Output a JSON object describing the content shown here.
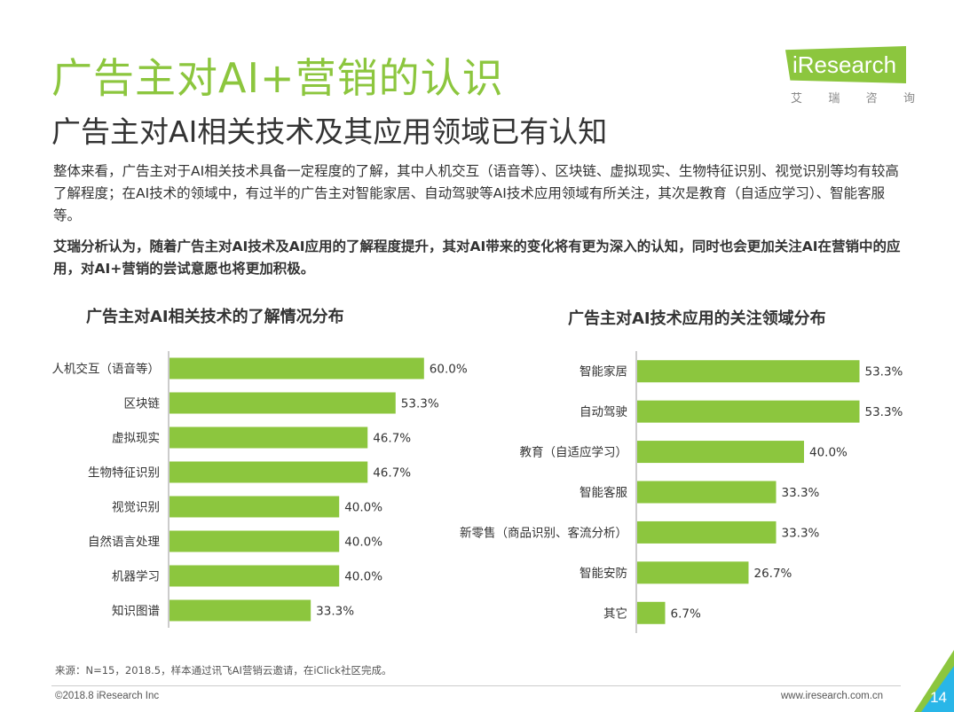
{
  "header": {
    "title": "广告主对AI+营销的认识",
    "subtitle": "广告主对AI相关技术及其应用领域已有认知"
  },
  "logo": {
    "word": "iResearch",
    "cn": [
      "艾",
      "瑞",
      "咨",
      "询"
    ]
  },
  "body": {
    "para1": "整体来看，广告主对于AI相关技术具备一定程度的了解，其中人机交互（语音等）、区块链、虚拟现实、生物特征识别、视觉识别等均有较高了解程度；在AI技术的领域中，有过半的广告主对智能家居、自动驾驶等AI技术应用领域有所关注，其次是教育（自适应学习）、智能客服等。",
    "para2": "艾瑞分析认为，随着广告主对AI技术及AI应用的了解程度提升，其对AI带来的变化将有更为深入的认知，同时也会更加关注AI在营销中的应用，对AI+营销的尝试意愿也将更加积极。"
  },
  "chart_data": [
    {
      "type": "bar",
      "orientation": "horizontal",
      "title": "广告主对AI相关技术的了解情况分布",
      "categories": [
        "人机交互（语音等）",
        "区块链",
        "虚拟现实",
        "生物特征识别",
        "视觉识别",
        "自然语言处理",
        "机器学习",
        "知识图谱"
      ],
      "values": [
        60.0,
        53.3,
        46.7,
        46.7,
        40.0,
        40.0,
        40.0,
        33.3
      ],
      "value_labels": [
        "60.0%",
        "53.3%",
        "46.7%",
        "46.7%",
        "40.0%",
        "40.0%",
        "40.0%",
        "33.3%"
      ],
      "unit": "%",
      "color": "#8cc63e"
    },
    {
      "type": "bar",
      "orientation": "horizontal",
      "title": "广告主对AI技术应用的关注领域分布",
      "categories": [
        "智能家居",
        "自动驾驶",
        "教育（自适应学习）",
        "智能客服",
        "新零售（商品识别、客流分析）",
        "智能安防",
        "其它"
      ],
      "values": [
        53.3,
        53.3,
        40.0,
        33.3,
        33.3,
        26.7,
        6.7
      ],
      "value_labels": [
        "53.3%",
        "53.3%",
        "40.0%",
        "33.3%",
        "33.3%",
        "26.7%",
        "6.7%"
      ],
      "unit": "%",
      "color": "#8cc63e"
    }
  ],
  "footer": {
    "source": "来源：N=15，2018.5，样本通过讯飞AI营销云邀请，在iClick社区完成。",
    "copyright": "©2018.8 iResearch Inc",
    "website": "www.iresearch.com.cn",
    "page": "14"
  },
  "colors": {
    "accent": "#8cc63e",
    "axis": "#999999"
  }
}
